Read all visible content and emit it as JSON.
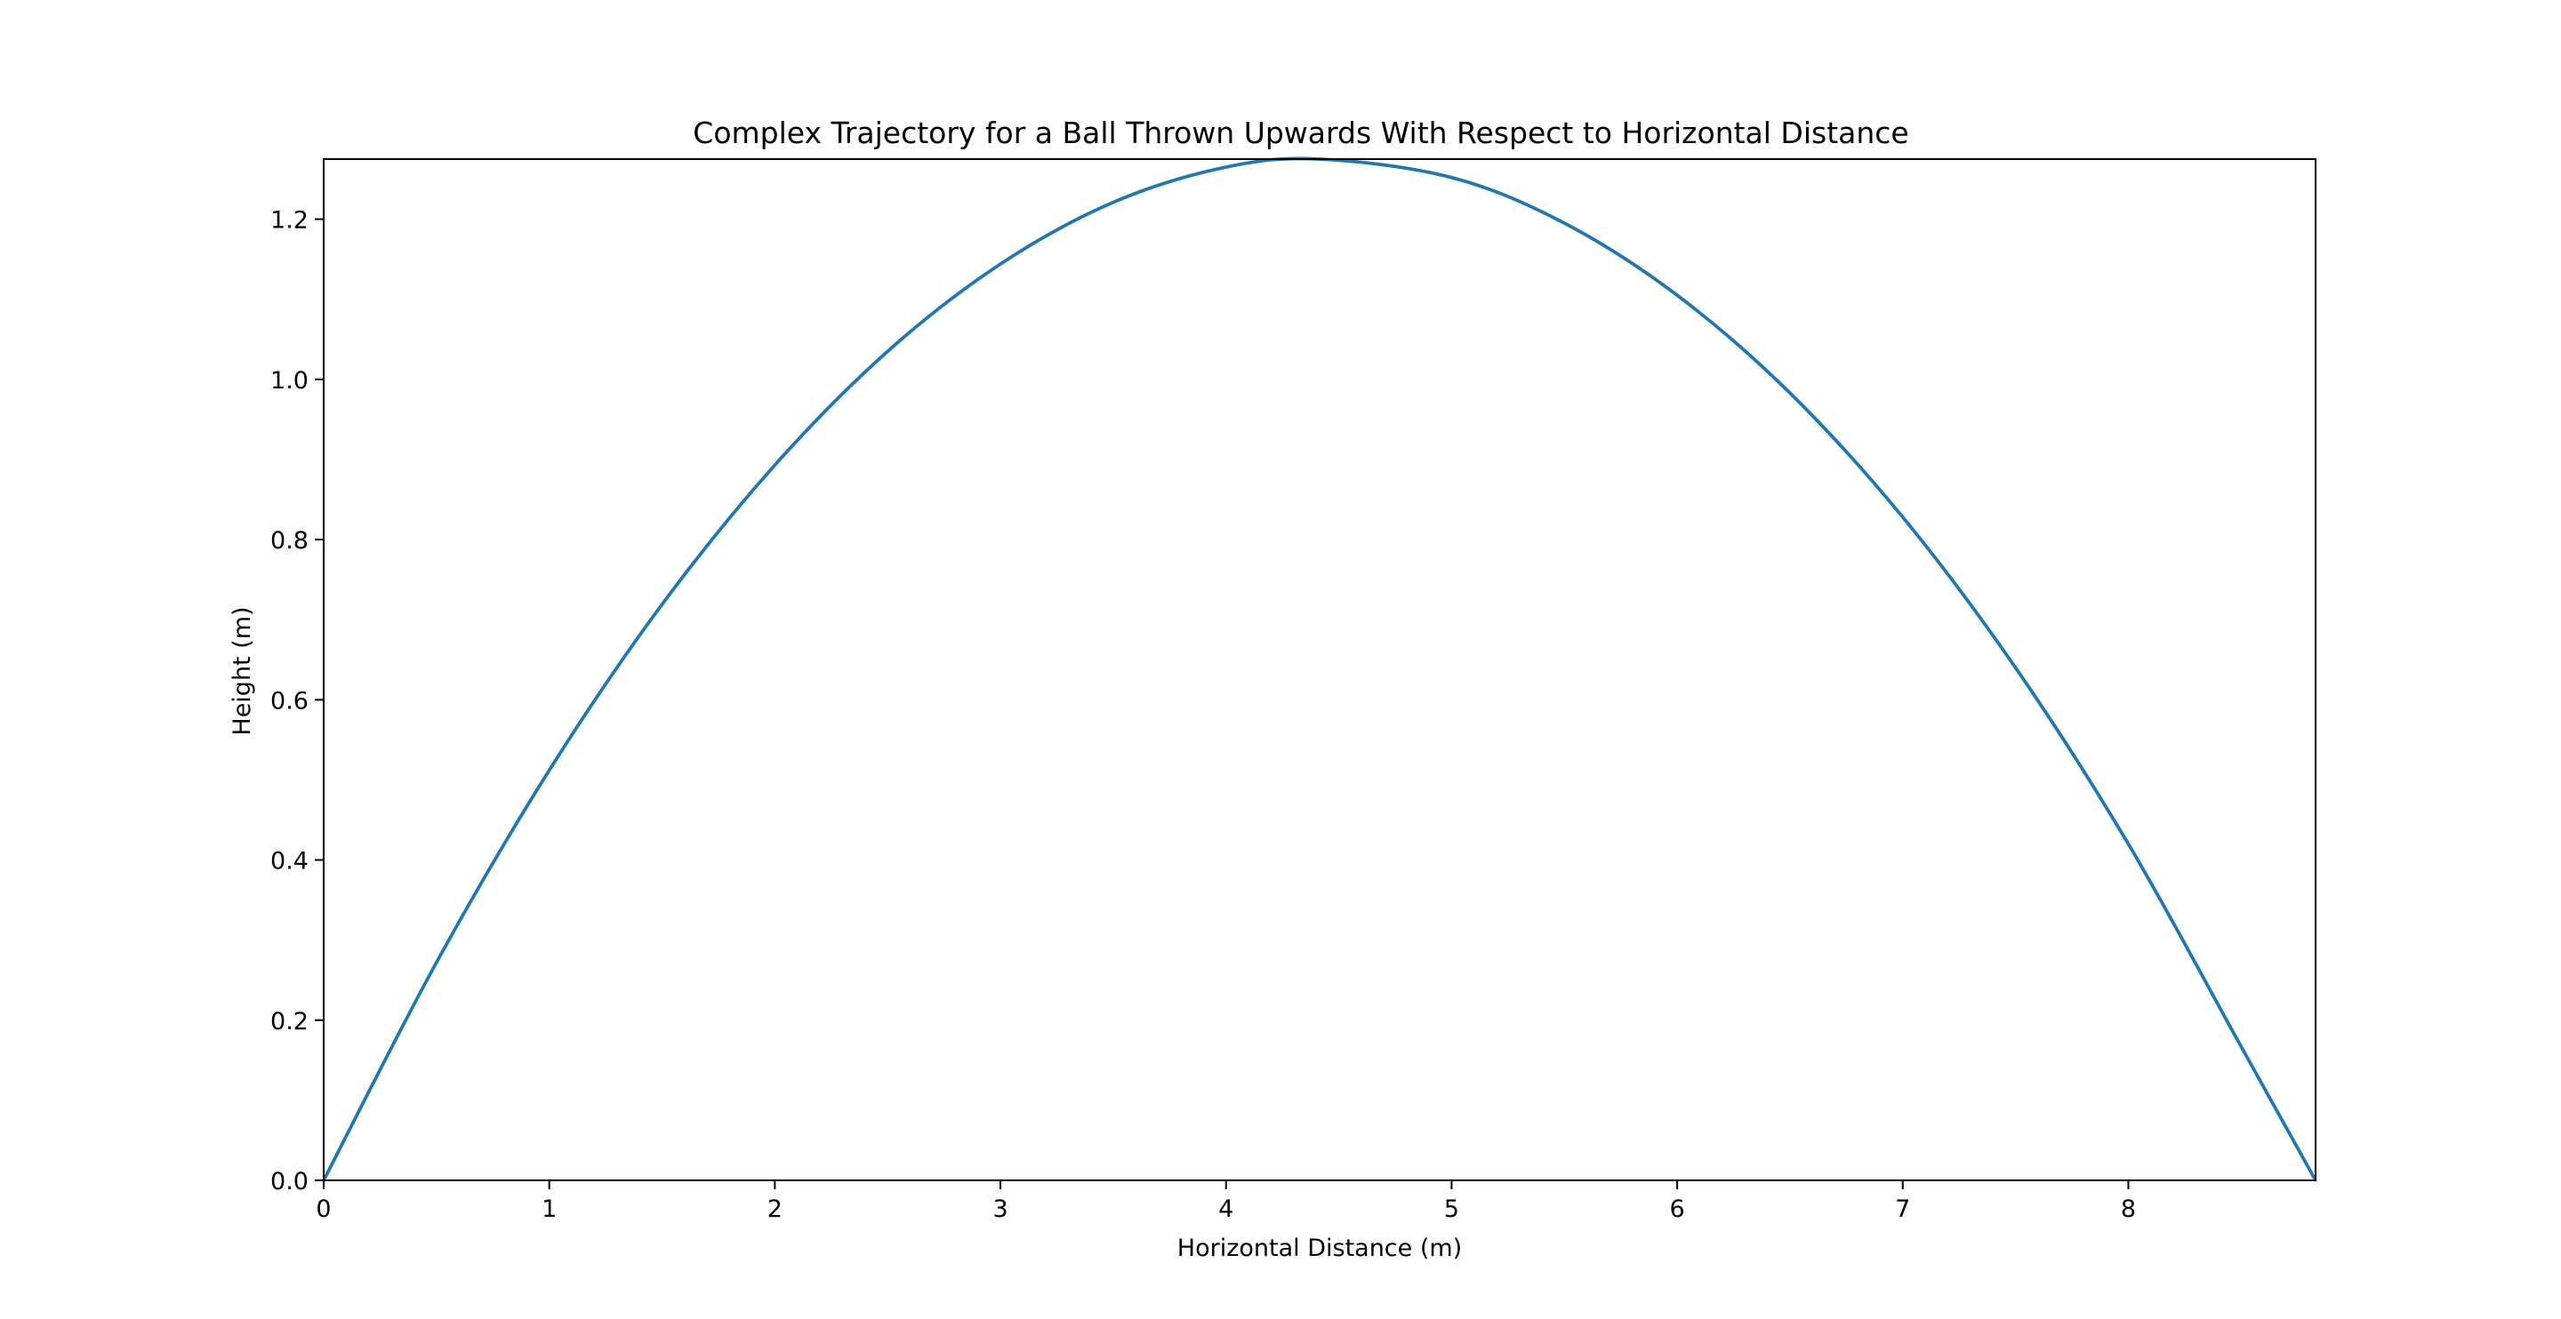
{
  "chart_data": {
    "type": "line",
    "title": "Complex Trajectory for a Ball Thrown Upwards With Respect to Horizontal Distance",
    "xlabel": "Horizontal Distance (m)",
    "ylabel": "Height (m)",
    "xlim": [
      0,
      8.83
    ],
    "ylim": [
      0,
      1.275
    ],
    "x_ticks": [
      0,
      1,
      2,
      3,
      4,
      5,
      6,
      7,
      8
    ],
    "x_tick_labels": [
      "0",
      "1",
      "2",
      "3",
      "4",
      "5",
      "6",
      "7",
      "8"
    ],
    "y_ticks": [
      0.0,
      0.2,
      0.4,
      0.6,
      0.8,
      1.0,
      1.2
    ],
    "y_tick_labels": [
      "0.0",
      "0.2",
      "0.4",
      "0.6",
      "0.8",
      "1.0",
      "1.2"
    ],
    "grid": false,
    "legend": "none",
    "series": [
      {
        "color": "#1f77b4",
        "x": [
          0,
          0.5,
          1,
          1.5,
          2,
          2.5,
          3,
          3.5,
          4,
          4.415,
          5,
          5.5,
          6,
          6.5,
          7,
          7.5,
          8,
          8.5,
          8.83
        ],
        "y": [
          0,
          0.272,
          0.512,
          0.719,
          0.893,
          1.035,
          1.144,
          1.221,
          1.265,
          1.275,
          1.252,
          1.195,
          1.105,
          0.983,
          0.828,
          0.64,
          0.42,
          0.167,
          0
        ]
      }
    ]
  }
}
